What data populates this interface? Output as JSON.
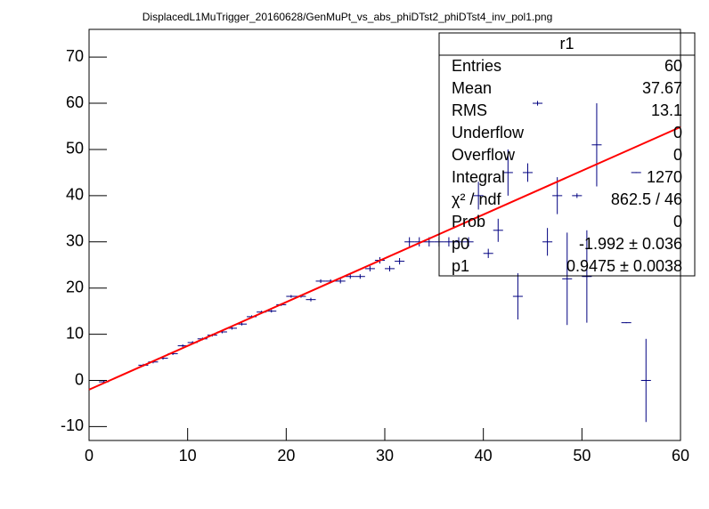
{
  "chart_data": {
    "type": "profile",
    "title": "DisplacedL1MuTrigger_20160628/GenMuPt_vs_abs_phiDTst2_phiDTst4_inv_pol1.png",
    "xlim": [
      0,
      60
    ],
    "ylim": [
      -13,
      76
    ],
    "xticks": [
      0,
      10,
      20,
      30,
      40,
      50,
      60
    ],
    "yticks": [
      -10,
      0,
      10,
      20,
      30,
      40,
      50,
      60,
      70
    ],
    "bin_width": 1,
    "series": [
      {
        "name": "r1",
        "color": "#000080",
        "x": [
          1.5,
          5.5,
          6.5,
          7.5,
          8.5,
          9.5,
          10.5,
          11.5,
          12.5,
          13.5,
          14.5,
          15.5,
          16.5,
          17.5,
          18.5,
          19.5,
          20.5,
          21.5,
          22.5,
          23.5,
          24.5,
          25.5,
          26.5,
          27.5,
          28.5,
          29.5,
          30.5,
          31.5,
          32.5,
          33.5,
          34.5,
          35.5,
          36.5,
          37.5,
          38.5,
          39.5,
          40.5,
          41.5,
          42.5,
          43.5,
          44.5,
          45.5,
          46.5,
          47.5,
          48.5,
          49.5,
          50.5,
          51.5,
          54.5,
          55.5,
          56.5
        ],
        "values": [
          -0.3,
          3.3,
          4,
          4.8,
          5.8,
          7.5,
          8.2,
          9,
          9.8,
          10.5,
          11.3,
          12.2,
          13.8,
          14.8,
          15,
          16.4,
          18.2,
          18.2,
          17.5,
          21.5,
          21.5,
          21.5,
          22.5,
          22.5,
          24.2,
          26,
          24.2,
          25.8,
          30,
          30,
          30,
          30,
          30,
          30,
          30,
          40,
          27.5,
          32.5,
          45,
          18.2,
          45,
          60,
          30,
          40,
          22,
          40,
          22.5,
          51,
          12.5,
          45,
          0
        ],
        "errors": [
          0.3,
          0.3,
          0.3,
          0.3,
          0.3,
          0.3,
          0.3,
          0.3,
          0.3,
          0.3,
          0.3,
          0.3,
          0.3,
          0.3,
          0.3,
          0.3,
          0.3,
          0.3,
          0.4,
          0.4,
          0.4,
          0.5,
          0.5,
          0.5,
          0.6,
          0.7,
          0.6,
          0.7,
          1,
          1,
          1,
          1,
          1,
          1,
          1,
          3,
          1,
          2.5,
          5,
          5,
          2,
          0.5,
          3,
          4,
          10,
          0.5,
          10,
          9,
          0.1,
          0.1,
          9
        ]
      }
    ],
    "fit": {
      "color": "#ff0000"
    },
    "stats": {
      "title": "r1",
      "rows": [
        {
          "label": "Entries",
          "value_label": "60"
        },
        {
          "label": "Mean",
          "value_label": "37.67"
        },
        {
          "label": "RMS",
          "value_label": "13.1"
        },
        {
          "label": "Underflow",
          "value_label": "0"
        },
        {
          "label": "Overflow",
          "value_label": "0"
        },
        {
          "label": "Integral",
          "value_label": "1270"
        },
        {
          "label": "χ² / ndf",
          "value_label": "862.5 / 46"
        },
        {
          "label": "Prob",
          "value_label": "0"
        },
        {
          "label": "p0",
          "value": -1.992,
          "value_label": "-1.992 ± 0.036"
        },
        {
          "label": "p1",
          "value": 0.9475,
          "value_label": "0.9475 ± 0.0038"
        }
      ]
    }
  }
}
